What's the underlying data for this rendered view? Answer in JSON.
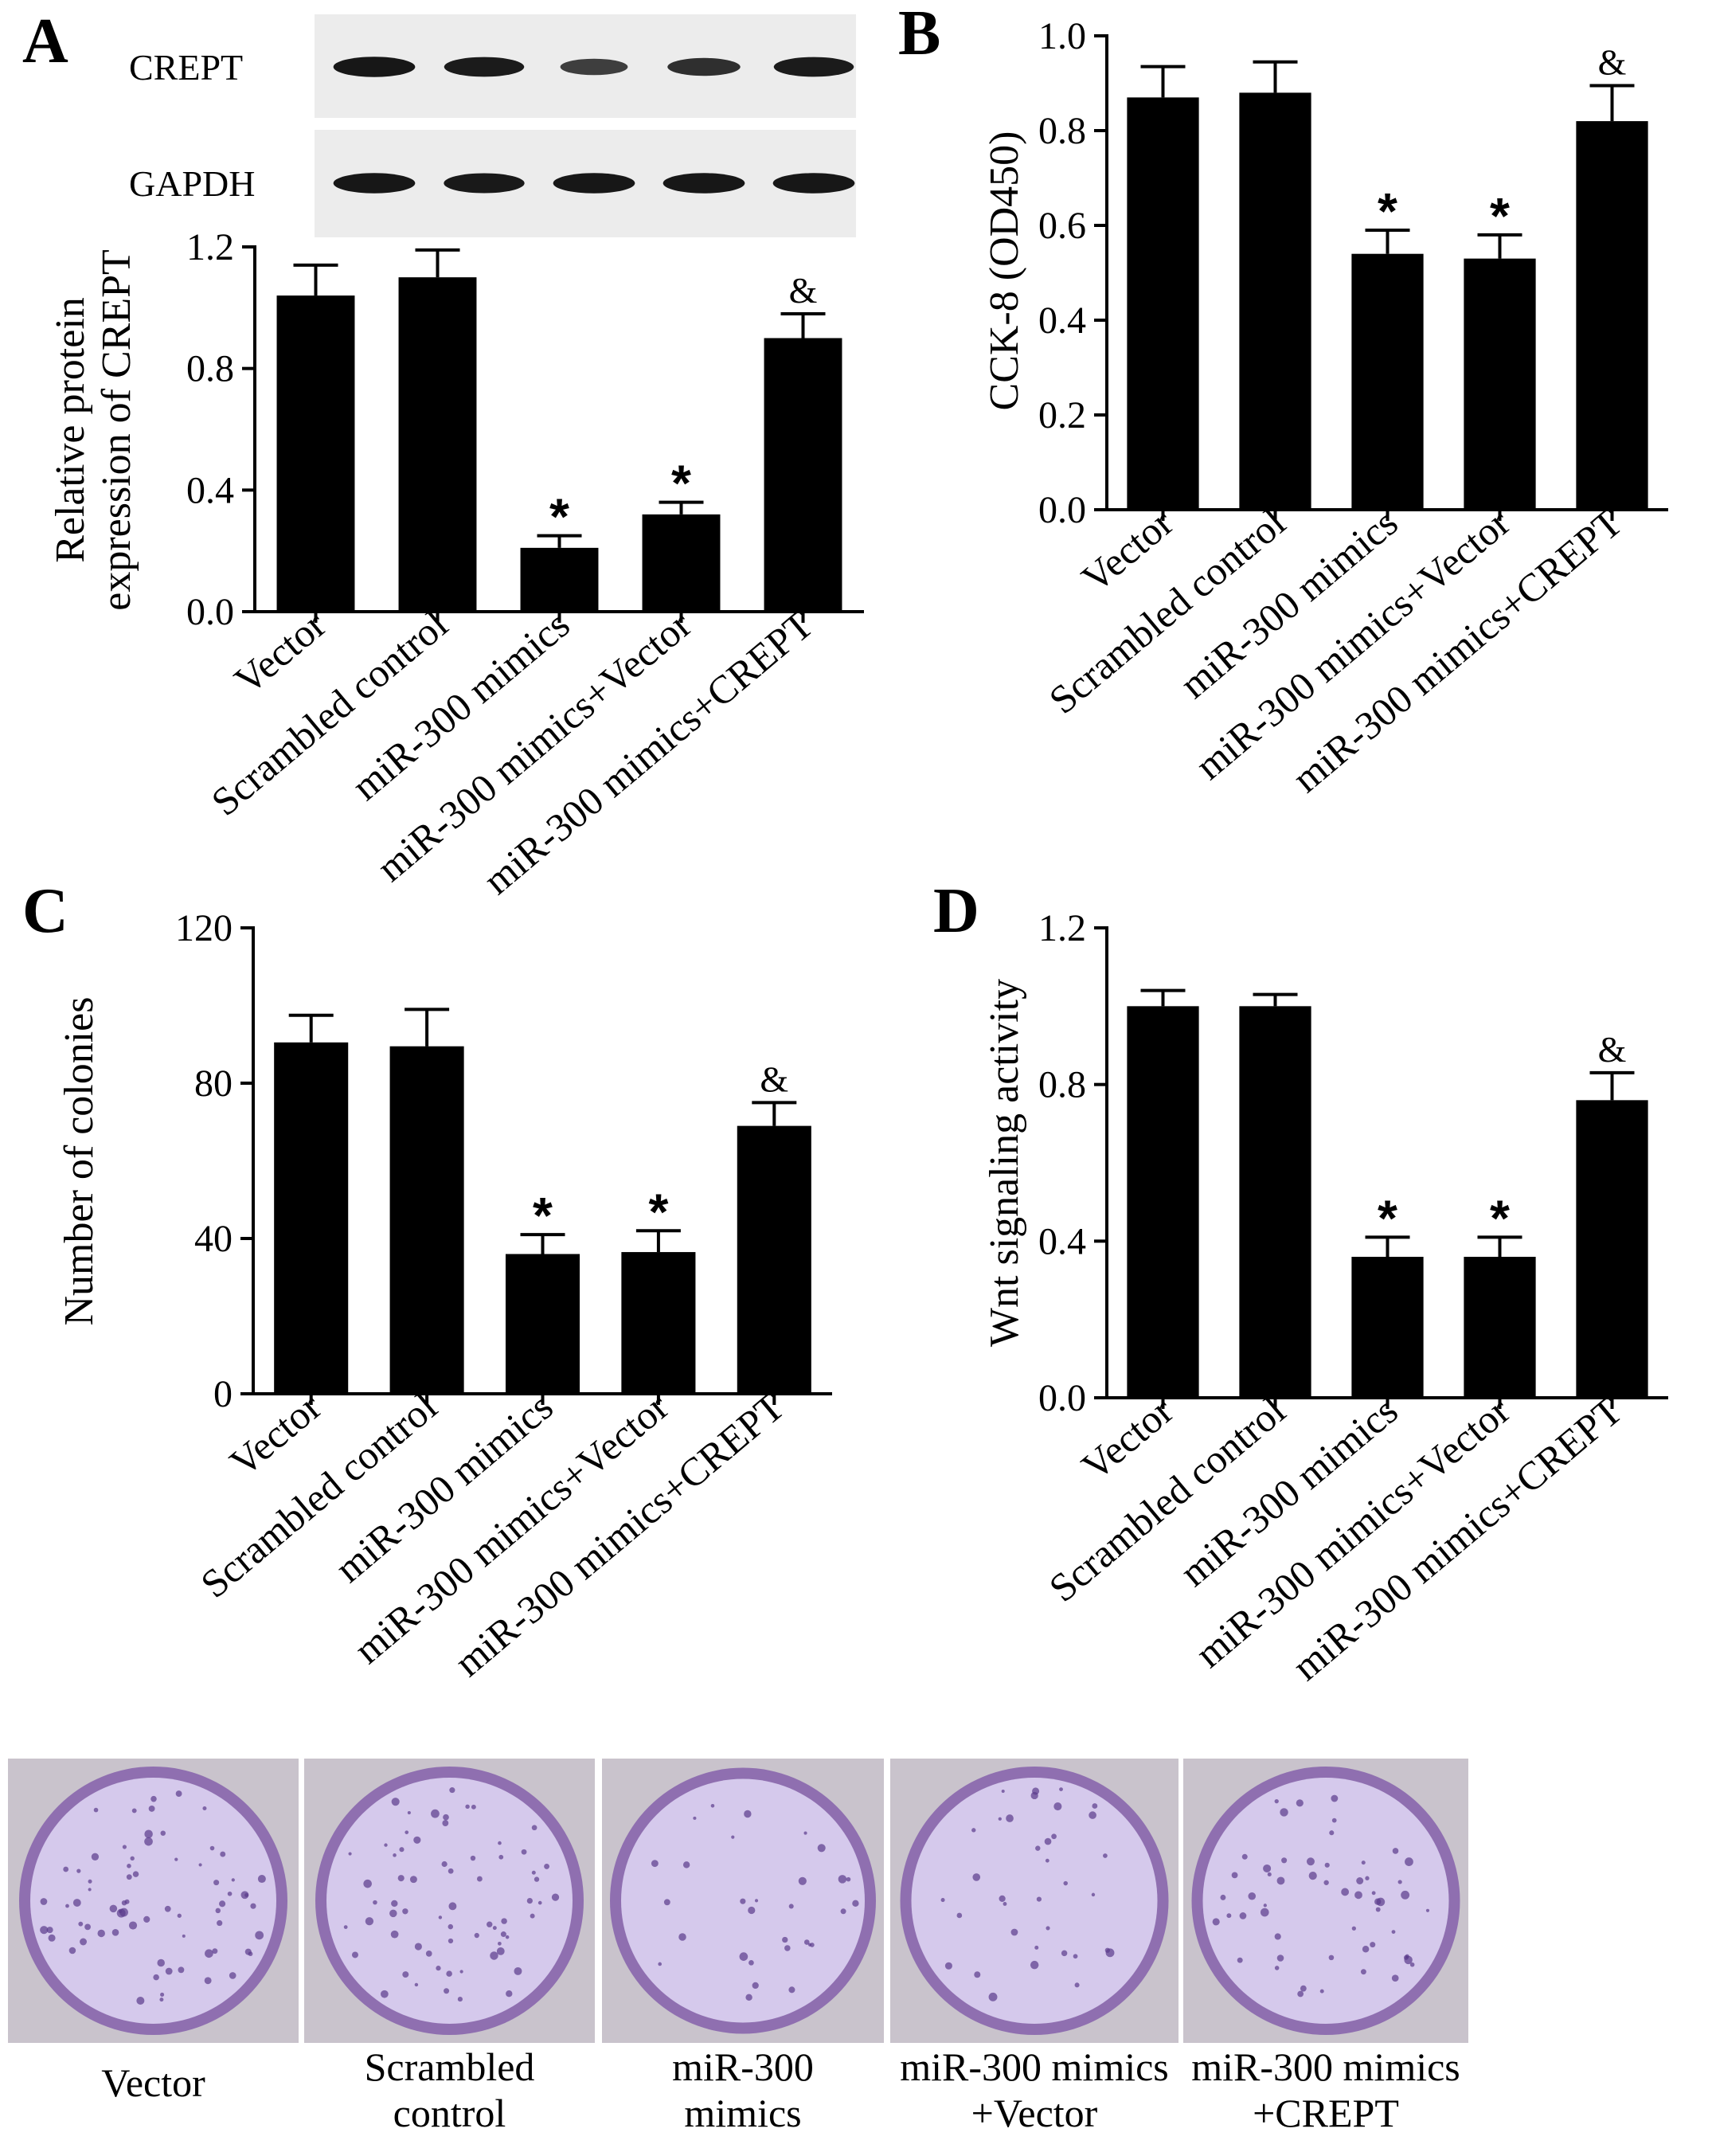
{
  "figure": {
    "western_blot": {
      "rows": [
        {
          "label": "CREPT",
          "band_intensity": [
            0.95,
            0.9,
            0.55,
            0.7,
            0.9
          ]
        },
        {
          "label": "GAPDH",
          "band_intensity": [
            0.95,
            0.92,
            0.95,
            0.95,
            0.95
          ]
        }
      ]
    },
    "colony_plates": {
      "captions": [
        [
          "Vector"
        ],
        [
          "Scrambled",
          "control"
        ],
        [
          "miR-300",
          "mimics"
        ],
        [
          "miR-300 mimics",
          "+Vector"
        ],
        [
          "miR-300 mimics",
          "+CREPT"
        ]
      ],
      "colors": {
        "well": "#d5c9ec",
        "rim": "#8f6fb0",
        "frame": "#c9c3cc",
        "colony": "#5a3a8c"
      }
    }
  },
  "chart_data": [
    {
      "panel": "A",
      "type": "bar",
      "categories": [
        "Vector",
        "Scrambled control",
        "miR-300 mimics",
        "miR-300 mimics+Vector",
        "miR-300 mimics+CREPT"
      ],
      "values": [
        1.04,
        1.1,
        0.21,
        0.32,
        0.9
      ],
      "errors": [
        0.1,
        0.09,
        0.04,
        0.04,
        0.08
      ],
      "annotations": [
        "",
        "",
        "*",
        "*",
        "&"
      ],
      "ylabel": [
        "Relative protein",
        "expression of CREPT"
      ],
      "ylim": [
        0,
        1.2
      ],
      "yticks": [
        "0.0",
        "0.4",
        "0.8",
        "1.2"
      ],
      "bar_color": "#000000"
    },
    {
      "panel": "B",
      "type": "bar",
      "categories": [
        "Vector",
        "Scrambled control",
        "miR-300 mimics",
        "miR-300 mimics+Vector",
        "miR-300 mimics+CREPT"
      ],
      "values": [
        0.87,
        0.88,
        0.54,
        0.53,
        0.82
      ],
      "errors": [
        0.065,
        0.065,
        0.05,
        0.05,
        0.075
      ],
      "annotations": [
        "",
        "",
        "*",
        "*",
        "&"
      ],
      "ylabel": [
        "CCK-8 (OD450)"
      ],
      "ylim": [
        0,
        1.0
      ],
      "yticks": [
        "0.0",
        "0.2",
        "0.4",
        "0.6",
        "0.8",
        "1.0"
      ],
      "bar_color": "#000000"
    },
    {
      "panel": "C",
      "type": "bar",
      "categories": [
        "Vector",
        "Scrambled control",
        "miR-300 mimics",
        "miR-300 mimics+Vector",
        "miR-300 mimics+CREPT"
      ],
      "values": [
        90.5,
        89.5,
        36,
        36.5,
        69
      ],
      "errors": [
        7,
        9.5,
        5,
        5.5,
        6
      ],
      "annotations": [
        "",
        "",
        "*",
        "*",
        "&"
      ],
      "ylabel": [
        "Number of colonies"
      ],
      "ylim": [
        0,
        120
      ],
      "yticks": [
        "0",
        "40",
        "80",
        "120"
      ],
      "bar_color": "#000000"
    },
    {
      "panel": "D",
      "type": "bar",
      "categories": [
        "Vector",
        "Scrambled control",
        "miR-300 mimics",
        "miR-300 mimics+Vector",
        "miR-300 mimics+CREPT"
      ],
      "values": [
        1.0,
        1.0,
        0.36,
        0.36,
        0.76
      ],
      "errors": [
        0.04,
        0.03,
        0.05,
        0.05,
        0.07
      ],
      "annotations": [
        "",
        "",
        "*",
        "*",
        "&"
      ],
      "ylabel": [
        "Wnt signaling activity"
      ],
      "ylim": [
        0,
        1.2
      ],
      "yticks": [
        "0.0",
        "0.4",
        "0.8",
        "1.2"
      ],
      "bar_color": "#000000"
    }
  ]
}
